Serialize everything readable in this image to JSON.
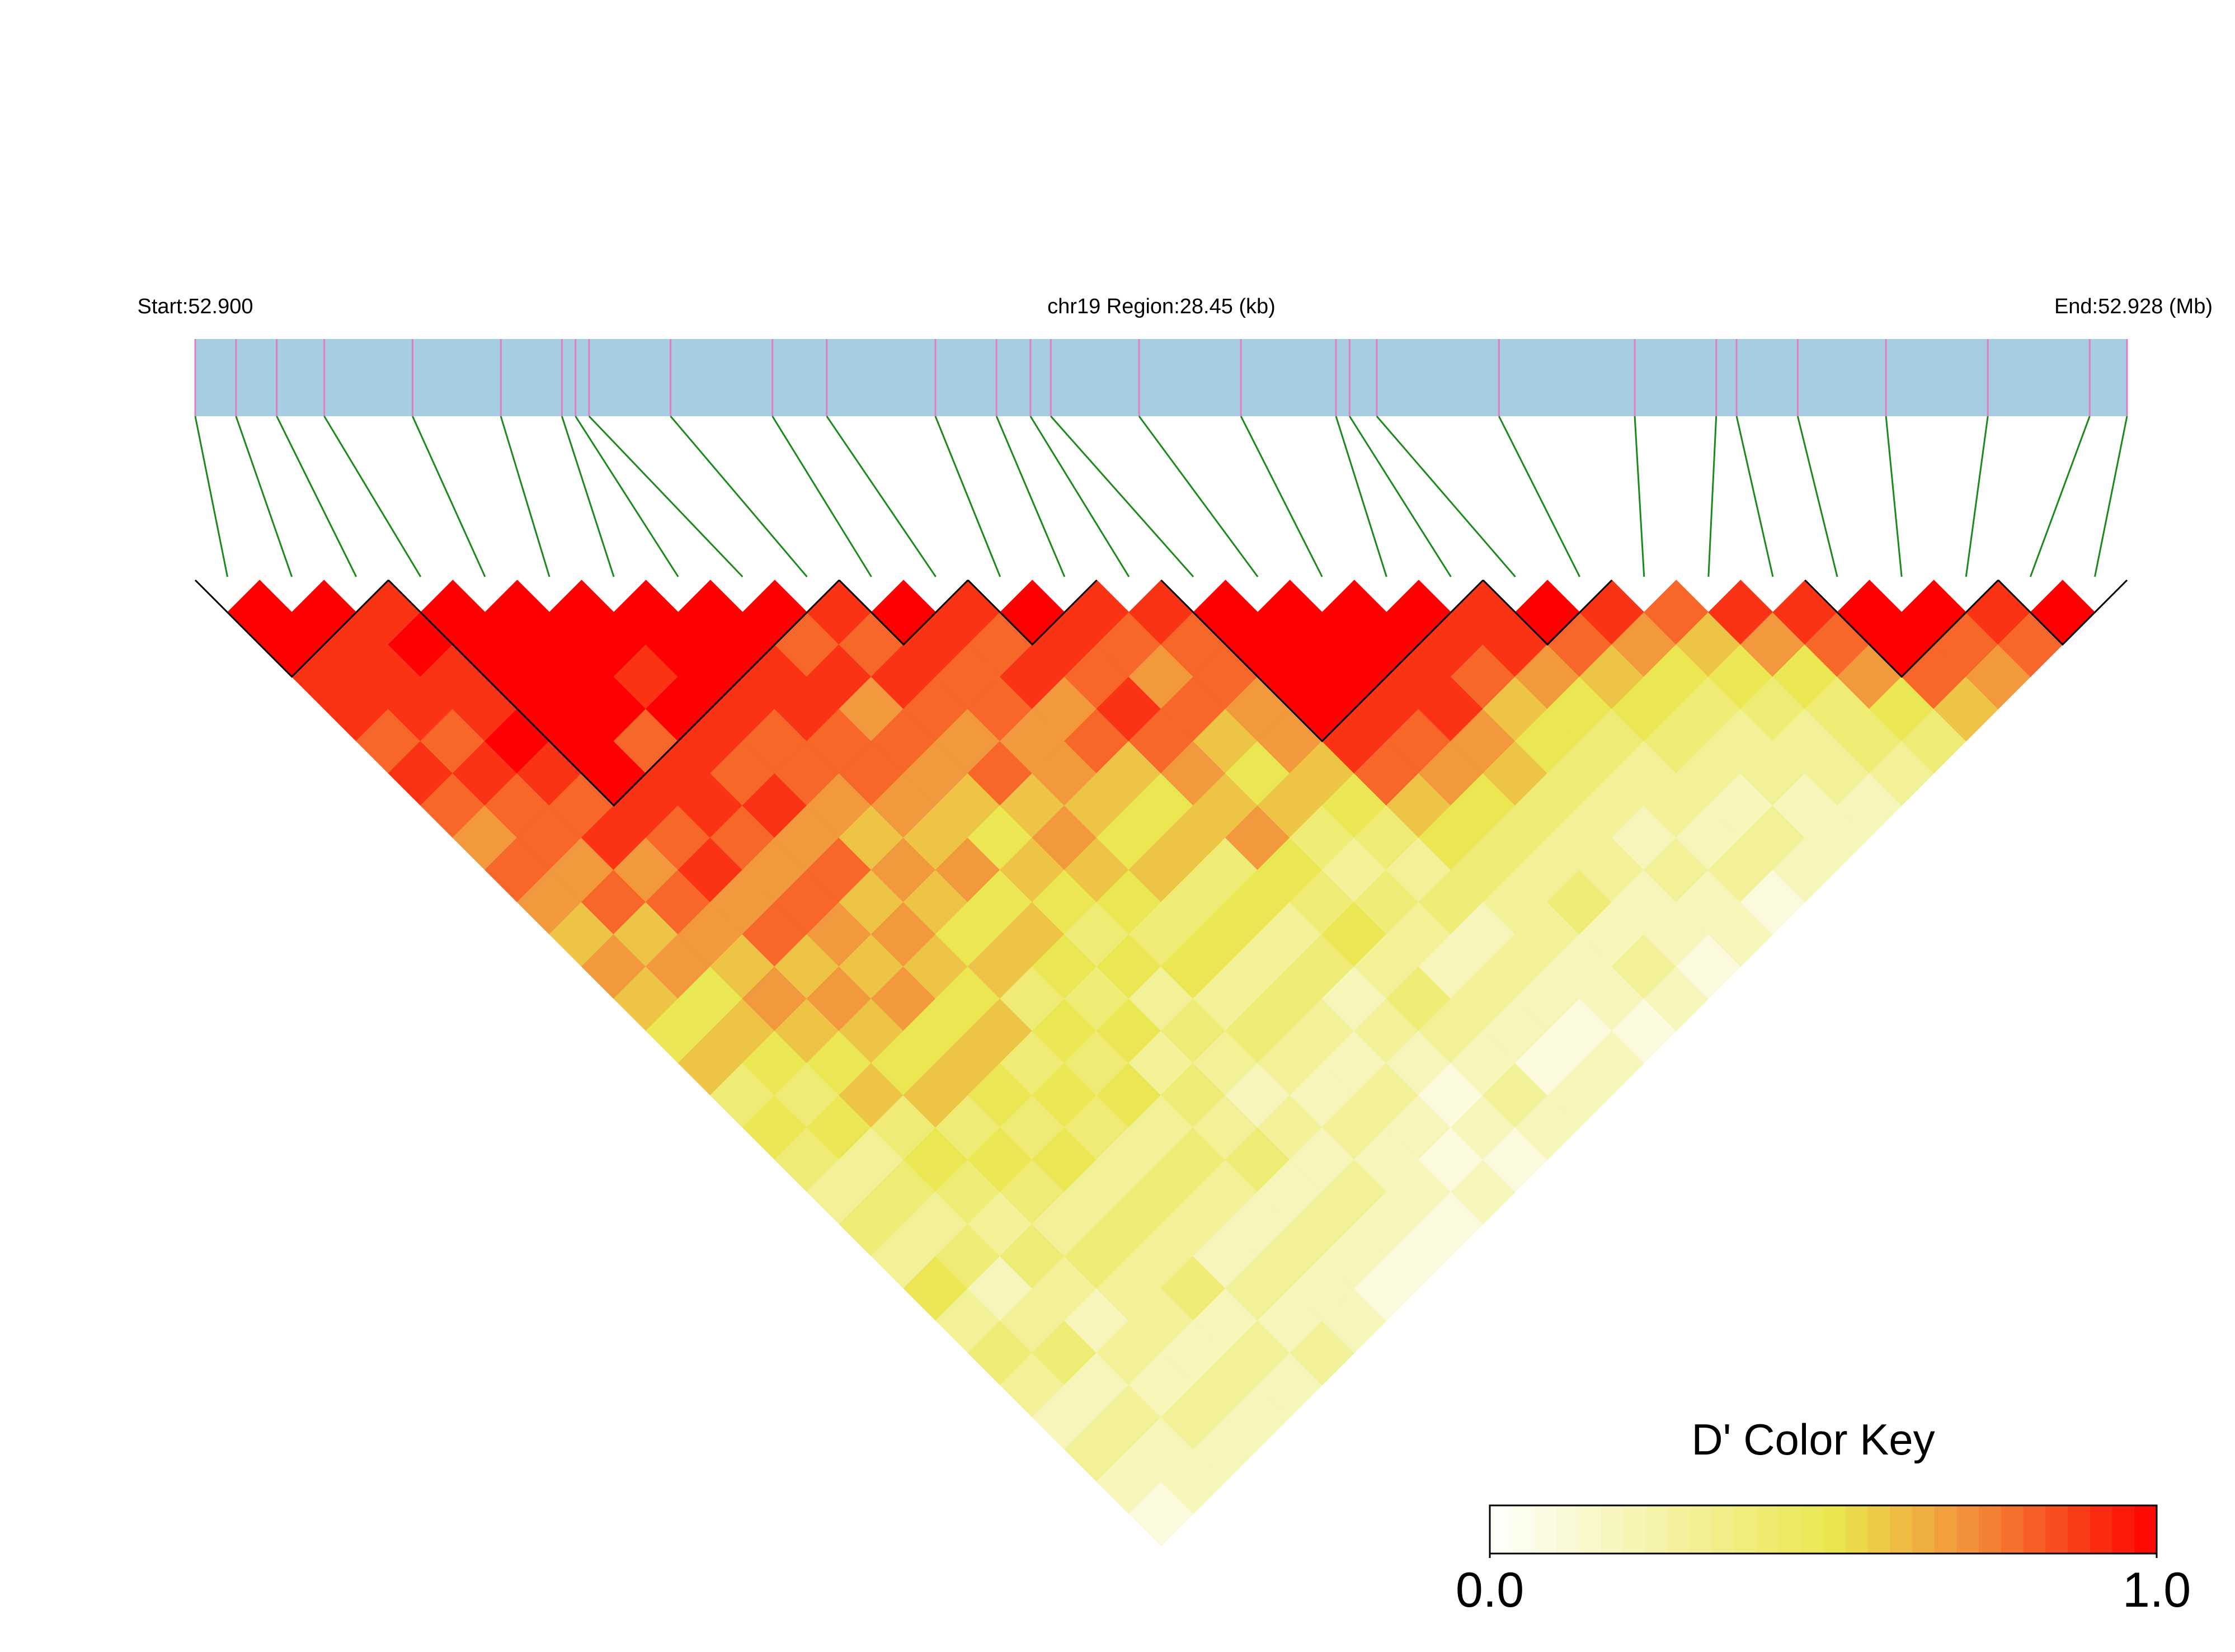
{
  "chart_data": {
    "type": "ld_heatmap",
    "start_label": "Start:52.900",
    "title": "chr19 Region:28.45 (kb)",
    "end_label": "End:52.928 (Mb)",
    "xlim": [
      0,
      28.45
    ],
    "snp_positions_kb": [
      0,
      0.6,
      1.2,
      1.9,
      3.2,
      4.5,
      5.4,
      5.6,
      5.8,
      7.0,
      8.5,
      9.3,
      10.9,
      11.8,
      12.3,
      12.6,
      13.9,
      15.4,
      16.8,
      17.0,
      17.4,
      19.2,
      21.2,
      22.4,
      22.7,
      23.6,
      24.9,
      26.4,
      27.9,
      28.45
    ],
    "bar_color": "#a6cde1",
    "marker_color": "#e07fc0",
    "connector_color": "#1a8a1a",
    "ld_matrix": [
      [
        1,
        1,
        0.9,
        0.9,
        0.8,
        0.9,
        0.8,
        0.7,
        0.8,
        0.7,
        0.6,
        0.7,
        0.6,
        0.5,
        0.6,
        0.4,
        0.5,
        0.4,
        0.3,
        0.4,
        0.3,
        0.5,
        0.3,
        0.4,
        0.3,
        0.2,
        0.3,
        0.2,
        0.1
      ],
      [
        1,
        0.9,
        0.9,
        0.9,
        0.8,
        0.9,
        0.8,
        0.8,
        0.7,
        0.8,
        0.6,
        0.7,
        0.5,
        0.6,
        0.5,
        0.4,
        0.5,
        0.3,
        0.4,
        0.3,
        0.4,
        0.2,
        0.3,
        0.4,
        0.2,
        0.3,
        0.2,
        0.2
      ],
      [
        0.9,
        1,
        0.9,
        0.9,
        1,
        0.9,
        0.8,
        0.9,
        0.7,
        0.8,
        0.7,
        0.6,
        0.7,
        0.6,
        0.5,
        0.6,
        0.4,
        0.5,
        0.4,
        0.3,
        0.4,
        0.3,
        0.2,
        0.3,
        0.2,
        0.3,
        0.2
      ],
      [
        1,
        1,
        1,
        1,
        1,
        1,
        0.9,
        0.8,
        0.9,
        0.7,
        0.8,
        0.6,
        0.7,
        0.6,
        0.5,
        0.6,
        0.4,
        0.5,
        0.4,
        0.3,
        0.4,
        0.3,
        0.3,
        0.2,
        0.3,
        0.2
      ],
      [
        1,
        1,
        1,
        1,
        0.8,
        0.9,
        0.9,
        0.8,
        0.7,
        0.8,
        0.7,
        0.6,
        0.7,
        0.5,
        0.6,
        0.5,
        0.4,
        0.5,
        0.3,
        0.4,
        0.3,
        0.4,
        0.2,
        0.3,
        0.2
      ],
      [
        1,
        1,
        0.9,
        1,
        0.9,
        0.8,
        0.9,
        0.7,
        0.8,
        0.6,
        0.7,
        0.6,
        0.5,
        0.6,
        0.4,
        0.5,
        0.4,
        0.3,
        0.4,
        0.3,
        0.2,
        0.3,
        0.2,
        0.3
      ],
      [
        1,
        1,
        1,
        0.9,
        0.8,
        0.8,
        0.7,
        0.6,
        0.7,
        0.6,
        0.5,
        0.6,
        0.4,
        0.5,
        0.4,
        0.5,
        0.3,
        0.4,
        0.3,
        0.2,
        0.3,
        0.2,
        0.2
      ],
      [
        1,
        1,
        0.9,
        0.9,
        0.8,
        0.8,
        0.7,
        0.6,
        0.7,
        0.5,
        0.6,
        0.5,
        0.4,
        0.5,
        0.3,
        0.4,
        0.3,
        0.4,
        0.2,
        0.3,
        0.2,
        0.1
      ],
      [
        1,
        0.8,
        0.9,
        0.7,
        0.8,
        0.7,
        0.6,
        0.5,
        0.6,
        0.5,
        0.4,
        0.5,
        0.3,
        0.4,
        0.3,
        0.2,
        0.3,
        0.2,
        0.3,
        0.2,
        0.1
      ],
      [
        0.9,
        0.8,
        0.9,
        0.8,
        0.7,
        0.8,
        0.6,
        0.7,
        0.6,
        0.5,
        0.4,
        0.5,
        0.3,
        0.4,
        0.3,
        0.2,
        0.3,
        0.2,
        0.2,
        0.1
      ],
      [
        1,
        0.9,
        0.8,
        0.8,
        0.7,
        0.7,
        0.6,
        0.5,
        0.6,
        0.4,
        0.5,
        0.3,
        0.4,
        0.3,
        0.2,
        0.3,
        0.2,
        0.1,
        0.2
      ],
      [
        0.9,
        0.8,
        0.9,
        0.7,
        0.8,
        0.6,
        0.5,
        0.6,
        0.4,
        0.5,
        0.3,
        0.4,
        0.2,
        0.3,
        0.2,
        0.1,
        0.2,
        0.1
      ],
      [
        1,
        0.9,
        0.8,
        0.9,
        0.8,
        0.7,
        0.6,
        0.7,
        0.5,
        0.4,
        0.5,
        0.3,
        0.4,
        0.3,
        0.2,
        0.3,
        0.2
      ],
      [
        0.9,
        0.8,
        0.7,
        0.8,
        0.6,
        0.5,
        0.6,
        0.4,
        0.3,
        0.4,
        0.3,
        0.2,
        0.3,
        0.2,
        0.1,
        0.2
      ],
      [
        0.9,
        0.8,
        0.8,
        0.7,
        0.7,
        0.6,
        0.5,
        0.4,
        0.3,
        0.4,
        0.2,
        0.3,
        0.2,
        0.1,
        0.2
      ],
      [
        1,
        1,
        1,
        1,
        0.9,
        0.8,
        0.6,
        0.5,
        0.4,
        0.3,
        0.3,
        0.2,
        0.2,
        0.1
      ],
      [
        1,
        1,
        1,
        0.9,
        0.8,
        0.7,
        0.5,
        0.4,
        0.3,
        0.4,
        0.2,
        0.3,
        0.2
      ],
      [
        1,
        1,
        0.9,
        0.9,
        0.7,
        0.6,
        0.4,
        0.3,
        0.3,
        0.2,
        0.2,
        0.1
      ],
      [
        1,
        0.9,
        0.8,
        0.6,
        0.5,
        0.4,
        0.3,
        0.2,
        0.3,
        0.2,
        0.2
      ],
      [
        0.9,
        0.9,
        0.7,
        0.5,
        0.4,
        0.3,
        0.3,
        0.2,
        0.3,
        0.1
      ],
      [
        1,
        0.8,
        0.6,
        0.5,
        0.4,
        0.3,
        0.2,
        0.3,
        0.2
      ],
      [
        0.9,
        0.7,
        0.5,
        0.4,
        0.3,
        0.3,
        0.2,
        0.2
      ],
      [
        0.8,
        0.6,
        0.5,
        0.4,
        0.3,
        0.3,
        0.2
      ],
      [
        0.9,
        0.7,
        0.5,
        0.4,
        0.4,
        0.3
      ],
      [
        0.9,
        0.8,
        0.7,
        0.5,
        0.4
      ],
      [
        1,
        1,
        0.8,
        0.6
      ],
      [
        1,
        0.8,
        0.7
      ],
      [
        0.9,
        0.8
      ],
      [
        1
      ]
    ],
    "blocks": [
      [
        0,
        2
      ],
      [
        3,
        9
      ],
      [
        10,
        11
      ],
      [
        12,
        13
      ],
      [
        15,
        19
      ],
      [
        20,
        21
      ],
      [
        25,
        27
      ],
      [
        28,
        29
      ]
    ],
    "color_stops": [
      {
        "value": 0,
        "color": "#ffffff"
      },
      {
        "value": 0.52,
        "color": "#eae64c"
      },
      {
        "value": 0.72,
        "color": "#f2903a"
      },
      {
        "value": 1,
        "color": "#ff0000"
      }
    ],
    "legend_title": "D' Color Key",
    "legend_ticks": [
      {
        "value": 0,
        "label": "0.0"
      },
      {
        "value": 1,
        "label": "1.0"
      }
    ]
  }
}
